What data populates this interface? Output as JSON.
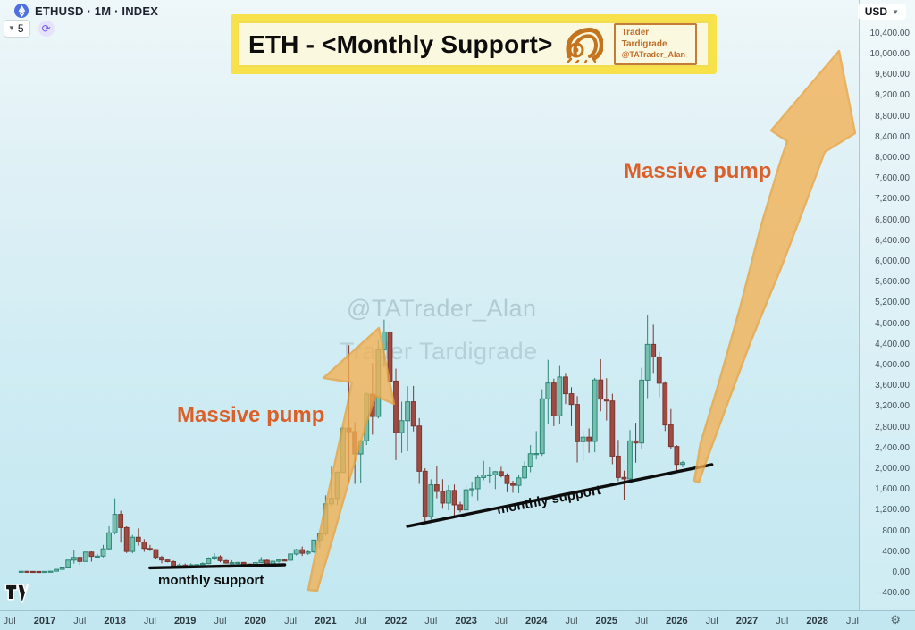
{
  "header": {
    "symbol": "ETHUSD · 1M · INDEX",
    "object_count": "5",
    "currency_button": "USD"
  },
  "banner": {
    "title": "ETH - <Monthly Support>",
    "badge_line1": "Trader Tardigrade",
    "badge_line2": "@TATrader_Alan"
  },
  "watermark": {
    "line1": "@TATrader_Alan",
    "line2": "Trader Tardigrade"
  },
  "annotations": {
    "pump_left": "Massive pump",
    "pump_right": "Massive pump",
    "support_label_left": "monthly support",
    "support_label_right": "monthly support"
  },
  "axes": {
    "price_ticks": [
      "10,400.00",
      "10,000.00",
      "9,600.00",
      "9,200.00",
      "8,800.00",
      "8,400.00",
      "8,000.00",
      "7,600.00",
      "7,200.00",
      "6,800.00",
      "6,400.00",
      "6,000.00",
      "5,600.00",
      "5,200.00",
      "4,800.00",
      "4,400.00",
      "4,000.00",
      "3,600.00",
      "3,200.00",
      "2,800.00",
      "2,400.00",
      "2,000.00",
      "1,600.00",
      "1,200.00",
      "800.00",
      "400.00",
      "0.00",
      "−400.00"
    ],
    "time_ticks": [
      "Jul",
      "2017",
      "Jul",
      "2018",
      "Jul",
      "2019",
      "Jul",
      "2020",
      "Jul",
      "2021",
      "Jul",
      "2022",
      "Jul",
      "2023",
      "Jul",
      "2024",
      "Jul",
      "2025",
      "Jul",
      "2026",
      "Jul",
      "2027",
      "Jul",
      "2028",
      "Jul"
    ]
  },
  "chart_data": {
    "type": "candlestick",
    "symbol": "ETHUSD",
    "timeframe": "1M",
    "currency": "USD",
    "start_month": "2016-09",
    "ylim": [
      -400,
      10400
    ],
    "colors": {
      "up_fill": "#74BFAE",
      "up_border": "#2E8577",
      "down_fill": "#9E4B44",
      "down_border": "#7A352F",
      "arrow_fill": "#F3B052",
      "arrow_border": "#E8A039",
      "pump_text": "#DB5F28",
      "support_line": "#0D0D0D"
    },
    "ohlc": [
      [
        13,
        14,
        11,
        13
      ],
      [
        13,
        13,
        10,
        11
      ],
      [
        11,
        11,
        9,
        10
      ],
      [
        10,
        10,
        7,
        8
      ],
      [
        8,
        12,
        8,
        11
      ],
      [
        11,
        16,
        10,
        15
      ],
      [
        15,
        55,
        15,
        50
      ],
      [
        50,
        80,
        42,
        78
      ],
      [
        78,
        230,
        74,
        228
      ],
      [
        228,
        415,
        160,
        280
      ],
      [
        280,
        290,
        132,
        202
      ],
      [
        202,
        390,
        198,
        383
      ],
      [
        383,
        398,
        198,
        300
      ],
      [
        300,
        345,
        275,
        305
      ],
      [
        305,
        522,
        280,
        445
      ],
      [
        445,
        880,
        418,
        755
      ],
      [
        755,
        1420,
        720,
        1110
      ],
      [
        1110,
        1180,
        565,
        855
      ],
      [
        855,
        880,
        365,
        395
      ],
      [
        395,
        712,
        360,
        668
      ],
      [
        668,
        840,
        508,
        578
      ],
      [
        578,
        632,
        388,
        452
      ],
      [
        452,
        520,
        403,
        430
      ],
      [
        430,
        436,
        248,
        282
      ],
      [
        282,
        312,
        165,
        230
      ],
      [
        230,
        242,
        184,
        198
      ],
      [
        198,
        222,
        100,
        118
      ],
      [
        118,
        162,
        80,
        132
      ],
      [
        132,
        162,
        98,
        107
      ],
      [
        107,
        166,
        102,
        136
      ],
      [
        136,
        148,
        122,
        141
      ],
      [
        141,
        186,
        134,
        162
      ],
      [
        162,
        282,
        150,
        267
      ],
      [
        267,
        362,
        224,
        290
      ],
      [
        290,
        322,
        188,
        218
      ],
      [
        218,
        236,
        160,
        172
      ],
      [
        172,
        226,
        148,
        180
      ],
      [
        180,
        198,
        150,
        183
      ],
      [
        183,
        192,
        130,
        152
      ],
      [
        152,
        158,
        114,
        130
      ],
      [
        130,
        186,
        124,
        180
      ],
      [
        180,
        288,
        174,
        223
      ],
      [
        223,
        252,
        86,
        134
      ],
      [
        134,
        228,
        128,
        206
      ],
      [
        206,
        248,
        178,
        231
      ],
      [
        231,
        254,
        214,
        226
      ],
      [
        226,
        348,
        214,
        346
      ],
      [
        346,
        446,
        318,
        428
      ],
      [
        428,
        490,
        308,
        360
      ],
      [
        360,
        420,
        330,
        386
      ],
      [
        386,
        622,
        368,
        615
      ],
      [
        615,
        760,
        458,
        737
      ],
      [
        737,
        1478,
        700,
        1313
      ],
      [
        1313,
        2042,
        1268,
        1418
      ],
      [
        1418,
        1946,
        1288,
        1919
      ],
      [
        1919,
        2798,
        1938,
        2772
      ],
      [
        2772,
        4374,
        1728,
        2706
      ],
      [
        2706,
        2892,
        1698,
        2274
      ],
      [
        2274,
        2542,
        1714,
        2530
      ],
      [
        2530,
        3462,
        2448,
        3430
      ],
      [
        3430,
        4030,
        2648,
        3000
      ],
      [
        3000,
        4460,
        2962,
        4288
      ],
      [
        4288,
        4868,
        3948,
        4630
      ],
      [
        4630,
        4780,
        3498,
        3682
      ],
      [
        3682,
        3920,
        2158,
        2688
      ],
      [
        2688,
        3284,
        2298,
        2918
      ],
      [
        2918,
        3582,
        2328,
        3282
      ],
      [
        3282,
        3588,
        2712,
        2814
      ],
      [
        2814,
        2968,
        1698,
        1942
      ],
      [
        1942,
        2000,
        920,
        1068
      ],
      [
        1068,
        1786,
        1004,
        1680
      ],
      [
        1680,
        2050,
        1422,
        1552
      ],
      [
        1552,
        1788,
        1218,
        1328
      ],
      [
        1328,
        1672,
        1188,
        1572
      ],
      [
        1572,
        1686,
        1072,
        1294
      ],
      [
        1294,
        1352,
        1148,
        1196
      ],
      [
        1196,
        1678,
        1190,
        1584
      ],
      [
        1584,
        1742,
        1458,
        1604
      ],
      [
        1604,
        1874,
        1368,
        1820
      ],
      [
        1820,
        2142,
        1768,
        1870
      ],
      [
        1870,
        2018,
        1718,
        1874
      ],
      [
        1874,
        1948,
        1598,
        1934
      ],
      [
        1934,
        2028,
        1822,
        1854
      ],
      [
        1854,
        1902,
        1538,
        1704
      ],
      [
        1704,
        1758,
        1528,
        1670
      ],
      [
        1670,
        1864,
        1518,
        1814
      ],
      [
        1814,
        2134,
        1788,
        2028
      ],
      [
        2028,
        2448,
        1922,
        2280
      ],
      [
        2280,
        2718,
        2168,
        2284
      ],
      [
        2284,
        3524,
        2238,
        3340
      ],
      [
        3340,
        4092,
        2848,
        3644
      ],
      [
        3644,
        3728,
        2812,
        3012
      ],
      [
        3012,
        3974,
        2862,
        3760
      ],
      [
        3760,
        3838,
        3238,
        3438
      ],
      [
        3438,
        3562,
        2812,
        3230
      ],
      [
        3230,
        3392,
        2112,
        2512
      ],
      [
        2512,
        2724,
        2148,
        2600
      ],
      [
        2600,
        2768,
        2298,
        2518
      ],
      [
        2518,
        3742,
        2308,
        3704
      ],
      [
        3704,
        4104,
        3098,
        3334
      ],
      [
        3334,
        3738,
        2922,
        3298
      ],
      [
        3298,
        3438,
        2078,
        2234
      ],
      [
        2234,
        2548,
        1752,
        1822
      ],
      [
        1822,
        1954,
        1384,
        1794
      ],
      [
        1794,
        2738,
        1728,
        2528
      ],
      [
        2528,
        2878,
        2108,
        2488
      ],
      [
        2488,
        3938,
        2368,
        3700
      ],
      [
        3700,
        4952,
        3352,
        4390
      ],
      [
        4390,
        4768,
        3838,
        4148
      ],
      [
        4148,
        4248,
        3372,
        3640
      ],
      [
        3640,
        3678,
        2718,
        2834
      ],
      [
        2834,
        3142,
        2378,
        2420
      ],
      [
        2420,
        2444,
        1950,
        2075
      ],
      [
        2075,
        2140,
        2018,
        2108
      ]
    ],
    "support_lines": [
      {
        "label": "monthly support",
        "from_month": "2018-07",
        "from_price": 78,
        "to_month": "2020-06",
        "to_price": 138
      },
      {
        "label": "monthly support",
        "from_month": "2022-03",
        "from_price": 880,
        "to_month": "2026-07",
        "to_price": 2070
      }
    ]
  }
}
